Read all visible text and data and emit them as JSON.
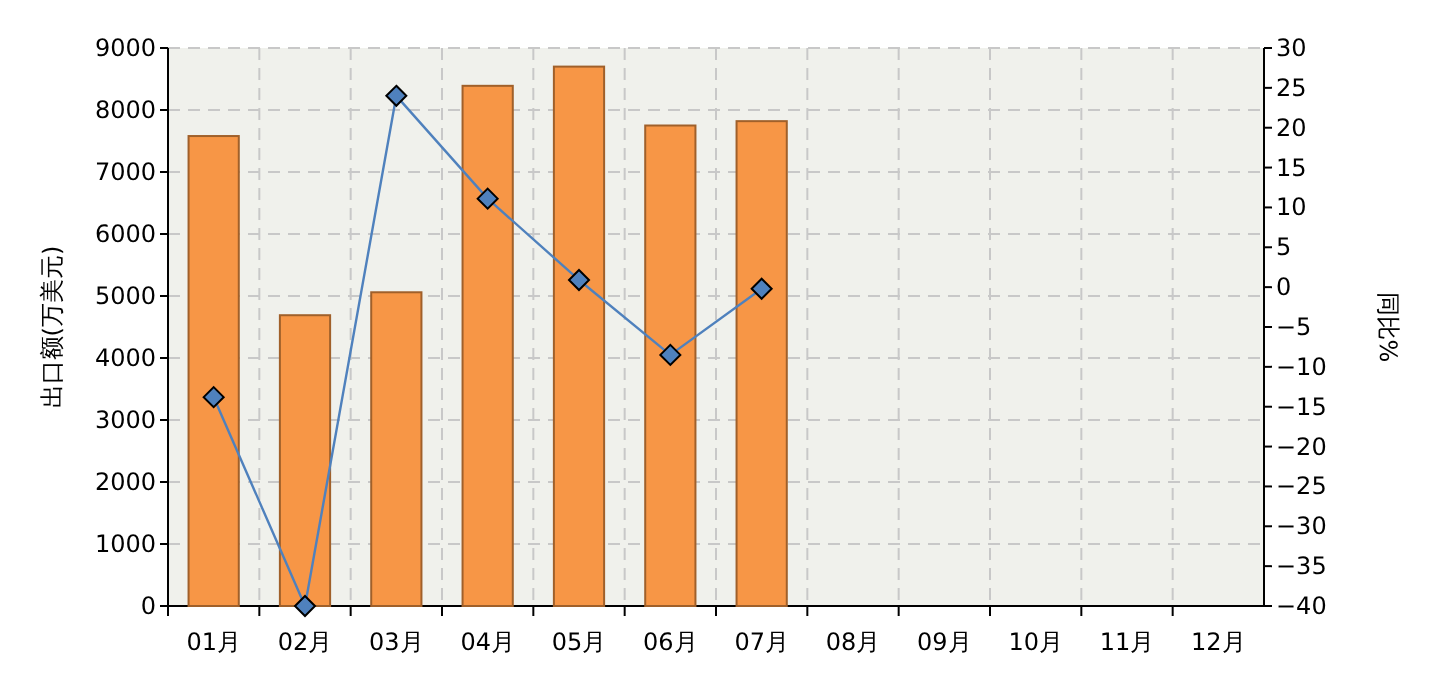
{
  "chart_data": {
    "type": "bar",
    "ylabel": "出口额(万美元)",
    "y2label": "同比%",
    "categories": [
      "01月",
      "02月",
      "03月",
      "04月",
      "05月",
      "06月",
      "07月",
      "08月",
      "09月",
      "10月",
      "11月",
      "12月"
    ],
    "series": [
      {
        "color": "#f79646",
        "values": [
          7580,
          4690,
          5060,
          8390,
          8700,
          7750,
          7820,
          null,
          null,
          null,
          null,
          null
        ]
      },
      {
        "type": "line",
        "axis": "y2",
        "color": "#4f81bd",
        "marker": "diamond",
        "values": [
          -13.8,
          -40,
          24.0,
          11.1,
          0.9,
          -8.5,
          -0.2,
          null,
          null,
          null,
          null,
          null
        ]
      }
    ],
    "ylim": [
      0,
      9000
    ],
    "yticks": [
      0,
      1000,
      2000,
      3000,
      4000,
      5000,
      6000,
      7000,
      8000,
      9000
    ],
    "y2lim": [
      -40,
      30
    ],
    "y2ticks": [
      -40,
      -35,
      -30,
      -25,
      -20,
      -15,
      -10,
      -5,
      0,
      5,
      10,
      15,
      20,
      25,
      30
    ],
    "grid": true
  }
}
